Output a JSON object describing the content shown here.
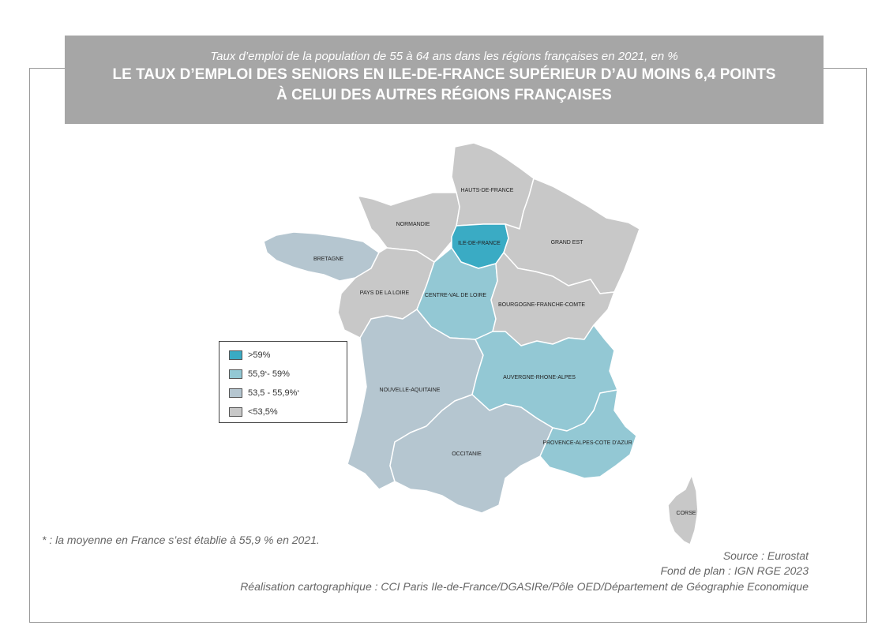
{
  "title": {
    "subtitle": "Taux d’emploi de la population de 55 à 64 ans dans les régions françaises en 2021, en %",
    "line1": "LE TAUX D’EMPLOI DES SENIORS EN ILE-DE-FRANCE SUPÉRIEUR D’AU MOINS 6,4 POINTS",
    "line2": "À CELUI DES AUTRES RÉGIONS FRANÇAISES"
  },
  "colors": {
    "high": "#3aabc4",
    "mid_high": "#93c8d4",
    "mid_low": "#b5c6d0",
    "low": "#c8c8c8",
    "border": "#ffffff",
    "banner": "#a6a6a6"
  },
  "legend": {
    "items": [
      {
        "label": ">59%",
        "class": "high"
      },
      {
        "label": "55,9",
        "sup": "*",
        "tail": "- 59%",
        "class": "mid_high"
      },
      {
        "label": "53,5 - 55,9%",
        "sup": "*",
        "tail": "",
        "class": "mid_low"
      },
      {
        "label": "<53,5%",
        "class": "low"
      }
    ]
  },
  "regions": {
    "hauts_de_france": {
      "name": "HAUTS-DE-FRANCE",
      "class": "low"
    },
    "normandie": {
      "name": "NORMANDIE",
      "class": "low"
    },
    "ile_de_france": {
      "name": "ILE-DE-FRANCE",
      "class": "high"
    },
    "grand_est": {
      "name": "GRAND EST",
      "class": "low"
    },
    "bretagne": {
      "name": "BRETAGNE",
      "class": "mid_low"
    },
    "pays_de_la_loire": {
      "name": "PAYS DE LA LOIRE",
      "class": "low"
    },
    "centre_val_de_loire": {
      "name": "CENTRE-VAL DE LOIRE",
      "class": "mid_high"
    },
    "bourgogne_franche_comte": {
      "name": "BOURGOGNE-FRANCHE-COMTE",
      "class": "low"
    },
    "nouvelle_aquitaine": {
      "name": "NOUVELLE-AQUITAINE",
      "class": "mid_low"
    },
    "auvergne_rhone_alpes": {
      "name": "AUVERGNE-RHONE-ALPES",
      "class": "mid_high"
    },
    "occitanie": {
      "name": "OCCITANIE",
      "class": "mid_low"
    },
    "paca": {
      "name": "PROVENCE-ALPES-COTE D'AZUR",
      "class": "mid_high"
    },
    "corse": {
      "name": "CORSE",
      "class": "low"
    }
  },
  "footnote": "* : la moyenne en France s’est établie à 55,9 % en 2021.",
  "source": "Source : Eurostat",
  "basemap": "Fond de plan : IGN RGE 2023",
  "credits": "Réalisation cartographique : CCI Paris Ile-de-France/DGASIRe/Pôle OED/Département de Géographie Economique"
}
